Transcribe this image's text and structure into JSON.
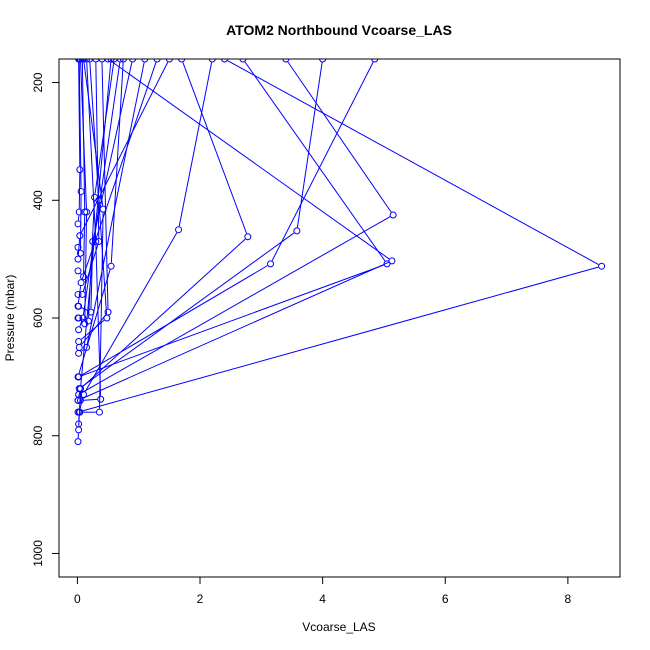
{
  "chart_data": {
    "type": "line",
    "title": "ATOM2 Northbound Vcoarse_LAS",
    "xlabel": "Vcoarse_LAS",
    "ylabel": "Pressure (mbar)",
    "xlim": [
      -0.3,
      8.85
    ],
    "ylim": [
      1040,
      160
    ],
    "y_reversed": true,
    "grid": false,
    "x_ticks": [
      0,
      2,
      4,
      6,
      8
    ],
    "y_ticks": [
      200,
      400,
      600,
      800,
      1000
    ],
    "colors": {
      "series": "#0000ff",
      "axes": "#000000",
      "background": "#ffffff"
    },
    "series": [
      {
        "values": [
          [
            0.01,
            810
          ],
          [
            0.02,
            790
          ],
          [
            0.05,
            720
          ],
          [
            0.55,
            160
          ]
        ]
      },
      {
        "values": [
          [
            0.02,
            780
          ],
          [
            0.03,
            760
          ],
          [
            0.1,
            730
          ],
          [
            1.65,
            450
          ],
          [
            2.2,
            160
          ]
        ]
      },
      {
        "values": [
          [
            0.01,
            740
          ],
          [
            0.05,
            720
          ],
          [
            2.78,
            462
          ],
          [
            1.7,
            160
          ]
        ]
      },
      {
        "values": [
          [
            0.03,
            720
          ],
          [
            3.58,
            452
          ],
          [
            4.0,
            160
          ]
        ]
      },
      {
        "values": [
          [
            0.02,
            730
          ],
          [
            5.15,
            425
          ],
          [
            3.4,
            160
          ]
        ]
      },
      {
        "values": [
          [
            0.02,
            700
          ],
          [
            5.05,
            508
          ],
          [
            2.7,
            160
          ]
        ]
      },
      {
        "values": [
          [
            0.01,
            740
          ],
          [
            5.13,
            503
          ],
          [
            0.5,
            160
          ]
        ]
      },
      {
        "values": [
          [
            0.01,
            760
          ],
          [
            8.55,
            512
          ],
          [
            2.4,
            160
          ]
        ]
      },
      {
        "values": [
          [
            0.02,
            700
          ],
          [
            3.15,
            508
          ],
          [
            4.85,
            160
          ]
        ]
      },
      {
        "values": [
          [
            0.01,
            700
          ],
          [
            0.55,
            512
          ],
          [
            0.75,
            160
          ]
        ]
      },
      {
        "values": [
          [
            0.03,
            650
          ],
          [
            0.5,
            590
          ],
          [
            0.4,
            160
          ]
        ]
      },
      {
        "values": [
          [
            0.02,
            640
          ],
          [
            0.48,
            600
          ],
          [
            0.35,
            400
          ],
          [
            0.2,
            160
          ]
        ]
      },
      {
        "values": [
          [
            0.05,
            740
          ],
          [
            0.38,
            738
          ],
          [
            0.3,
            470
          ],
          [
            0.15,
            160
          ]
        ]
      },
      {
        "values": [
          [
            0.04,
            760
          ],
          [
            0.36,
            760
          ],
          [
            0.42,
            415
          ],
          [
            0.1,
            160
          ]
        ]
      },
      {
        "values": [
          [
            0.02,
            600
          ],
          [
            0.12,
            610
          ],
          [
            0.15,
            420
          ],
          [
            0.05,
            160
          ]
        ]
      },
      {
        "values": [
          [
            0.01,
            560
          ],
          [
            0.08,
            560
          ],
          [
            0.35,
            470
          ],
          [
            0.3,
            160
          ]
        ]
      },
      {
        "values": [
          [
            0.01,
            520
          ],
          [
            0.1,
            530
          ],
          [
            0.12,
            420
          ],
          [
            0.08,
            160
          ]
        ]
      },
      {
        "values": [
          [
            0.01,
            480
          ],
          [
            0.05,
            490
          ],
          [
            0.06,
            385
          ],
          [
            0.03,
            160
          ]
        ]
      },
      {
        "values": [
          [
            0.01,
            600
          ],
          [
            0.18,
            605
          ],
          [
            0.28,
            395
          ],
          [
            0.6,
            160
          ]
        ]
      },
      {
        "values": [
          [
            0.02,
            580
          ],
          [
            0.22,
            590
          ],
          [
            0.25,
            470
          ],
          [
            0.9,
            160
          ]
        ]
      },
      {
        "values": [
          [
            0.01,
            440
          ],
          [
            0.03,
            420
          ],
          [
            0.04,
            348
          ],
          [
            0.02,
            160
          ]
        ]
      },
      {
        "values": [
          [
            0.02,
            660
          ],
          [
            0.15,
            650
          ],
          [
            1.1,
            160
          ]
        ]
      },
      {
        "values": [
          [
            0.01,
            580
          ],
          [
            0.06,
            540
          ],
          [
            1.3,
            160
          ]
        ]
      },
      {
        "values": [
          [
            0.01,
            500
          ],
          [
            0.04,
            460
          ],
          [
            1.5,
            160
          ]
        ]
      },
      {
        "values": [
          [
            0.02,
            620
          ],
          [
            0.09,
            600
          ],
          [
            0.7,
            160
          ]
        ]
      }
    ]
  }
}
